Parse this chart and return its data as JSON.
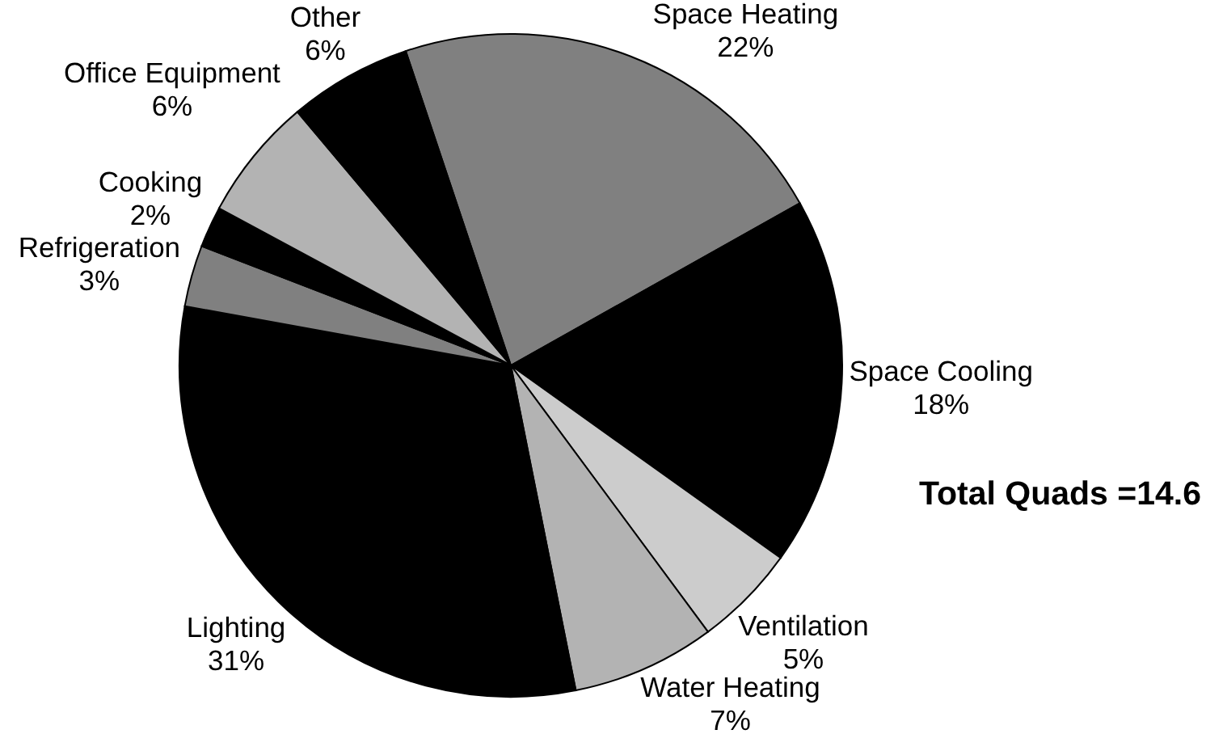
{
  "chart_data": {
    "type": "pie",
    "categories": [
      "Space Heating",
      "Space Cooling",
      "Ventilation",
      "Water Heating",
      "Lighting",
      "Refrigeration",
      "Cooking",
      "Office Equipment",
      "Other"
    ],
    "values": [
      22,
      18,
      5,
      7,
      31,
      3,
      2,
      6,
      6
    ],
    "value_labels": [
      "22%",
      "18%",
      "5%",
      "7%",
      "31%",
      "3%",
      "2%",
      "6%",
      "6%"
    ],
    "colors": [
      "#808080",
      "#000000",
      "#cccccc",
      "#b3b3b3",
      "#000000",
      "#808080",
      "#000000",
      "#b3b3b3",
      "#000000"
    ],
    "annotations": [
      "Total Quads =14.6"
    ]
  }
}
